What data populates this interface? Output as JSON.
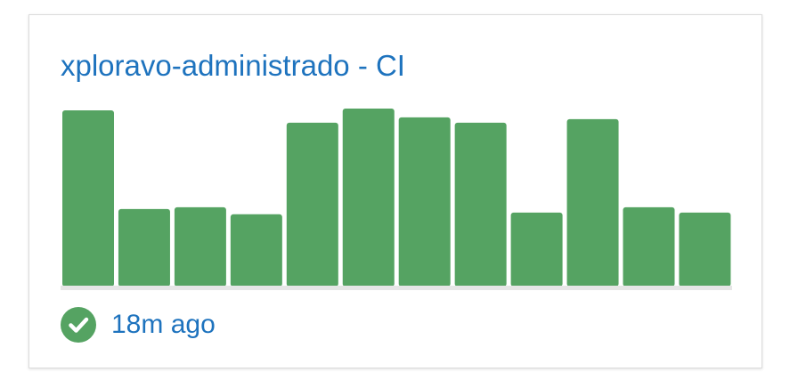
{
  "card": {
    "title": "xploravo-administrado - CI"
  },
  "status": {
    "icon": "check-circle-icon",
    "text": "18m ago",
    "color": "#55a362"
  },
  "colors": {
    "bar": "#55a362",
    "baseline": "#e6e6e6",
    "link": "#1e73be"
  },
  "chart_data": {
    "type": "bar",
    "values": [
      100,
      44,
      45,
      41,
      93,
      101,
      96,
      93,
      42,
      95,
      45,
      42
    ],
    "ylim": [
      0,
      101
    ]
  }
}
